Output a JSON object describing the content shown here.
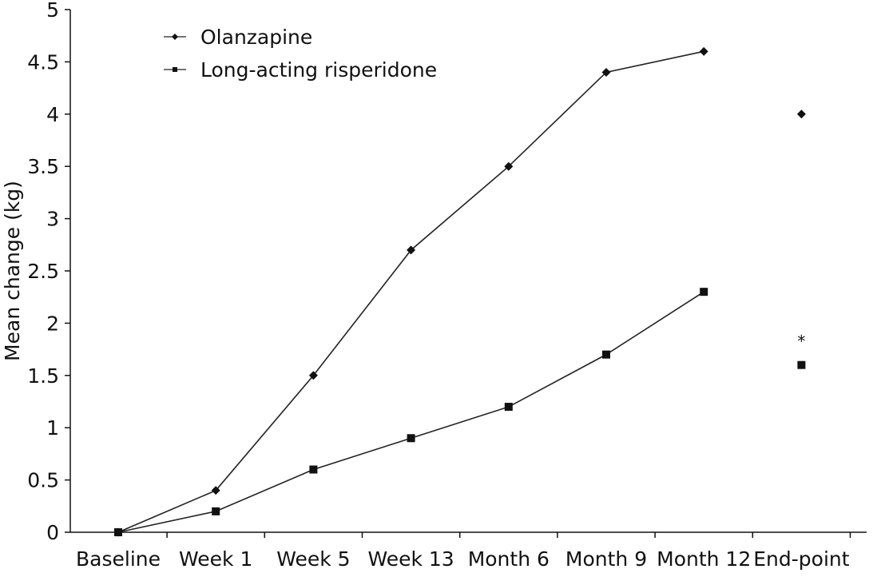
{
  "chart_data": {
    "type": "line",
    "categories": [
      "Baseline",
      "Week 1",
      "Week 5",
      "Week 13",
      "Month 6",
      "Month 9",
      "Month 12",
      "End-point"
    ],
    "xlabel": "",
    "ylabel": "Mean change (kg)",
    "ylim": [
      0,
      5
    ],
    "yticks": [
      "0",
      "0.5",
      "1",
      "1.5",
      "2",
      "2.5",
      "3",
      "3.5",
      "4",
      "4.5",
      "5"
    ],
    "grid": false,
    "legend_position": "top-left",
    "series": [
      {
        "name": "Olanzapine",
        "marker": "diamond",
        "values": [
          0,
          0.4,
          1.5,
          2.7,
          3.5,
          4.4,
          4.6,
          4.0
        ],
        "connected_points": 7
      },
      {
        "name": "Long-acting risperidone",
        "marker": "square",
        "values": [
          0,
          0.2,
          0.6,
          0.9,
          1.2,
          1.7,
          2.3,
          1.6
        ],
        "connected_points": 7
      }
    ],
    "annotations": [
      {
        "text": "*",
        "category": "End-point",
        "y": 1.85
      }
    ],
    "colors": {
      "line": "#222222",
      "marker": "#111111",
      "axis": "#111111"
    }
  }
}
